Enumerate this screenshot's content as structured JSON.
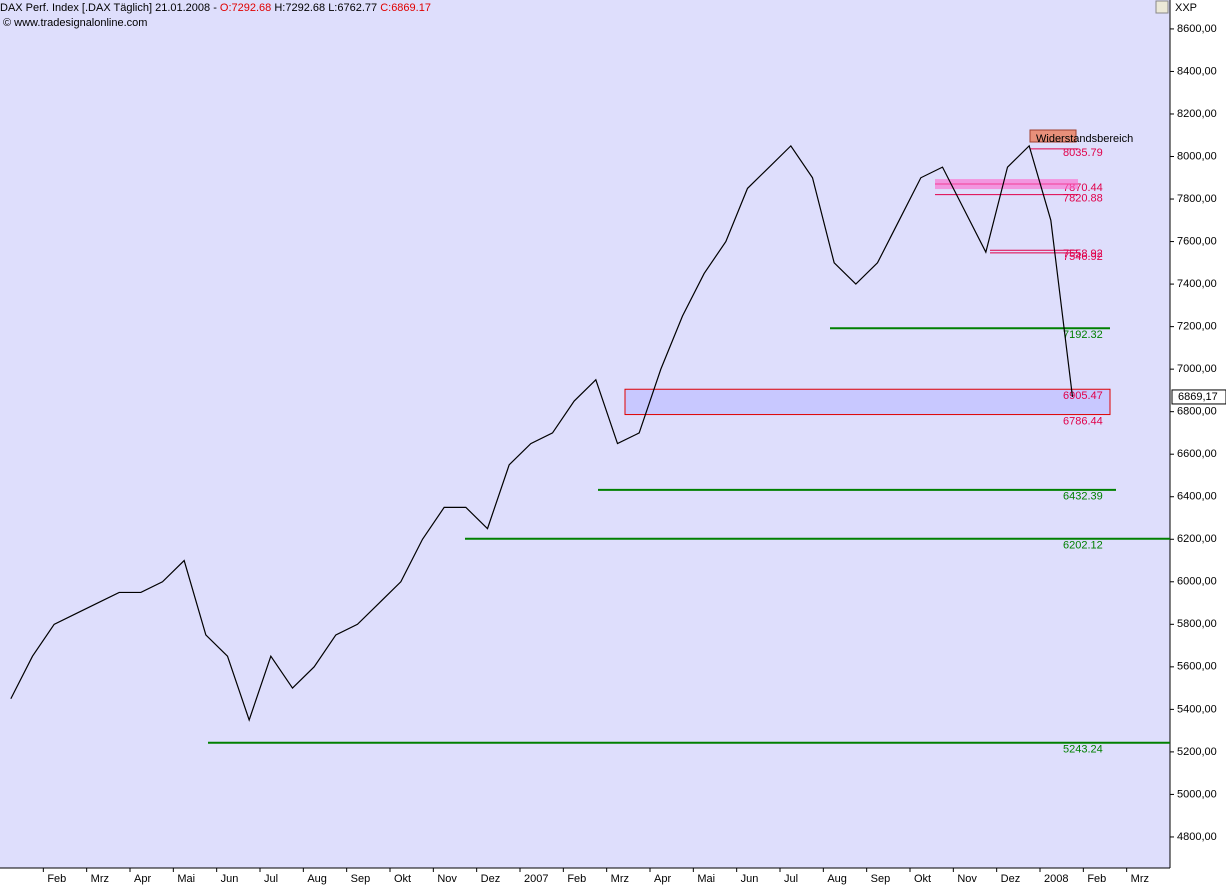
{
  "chart_data": {
    "type": "line",
    "header": {
      "name": "DAX Perf. Index [.DAX  Täglich] 21.01.2008 -",
      "open": "O:7292.68",
      "high": "H:7292.68",
      "low": "L:6762.77",
      "close": "C:6869.17"
    },
    "source": "© www.tradesignalonline.com",
    "symbol": "XXP",
    "color": "#000000",
    "categories": [
      null,
      null,
      "Feb",
      null,
      "Mrz",
      null,
      "Apr",
      null,
      "Mai",
      null,
      "Jun",
      null,
      "Jul",
      null,
      "Aug",
      null,
      "Sep",
      null,
      "Okt",
      null,
      "Nov",
      null,
      "Dez",
      null,
      "2007",
      null,
      "Feb",
      null,
      "Mrz",
      null,
      "Apr",
      null,
      "Mai",
      null,
      "Jun",
      null,
      "Jul",
      null,
      "Aug",
      null,
      "Sep",
      null,
      "Okt",
      null,
      "Nov",
      null,
      "Dez",
      null,
      "2008",
      null,
      "Feb",
      null,
      "Mrz",
      null
    ],
    "values": [
      5450,
      5650,
      5800,
      5850,
      5900,
      5950,
      5950,
      6000,
      6100,
      5750,
      5650,
      5350,
      5650,
      5500,
      5600,
      5750,
      5800,
      5900,
      6000,
      6200,
      6350,
      6350,
      6250,
      6550,
      6650,
      6700,
      6850,
      6950,
      6650,
      6700,
      7000,
      7250,
      7450,
      7600,
      7850,
      7950,
      8050,
      7900,
      7500,
      7400,
      7500,
      7700,
      7900,
      7950,
      7750,
      7550,
      7950,
      8050,
      7700,
      6869.17,
      null,
      null,
      null,
      null
    ],
    "ylim": [
      4654,
      8736
    ],
    "yticks": [
      {
        "value": 4800,
        "label": "4800,00"
      },
      {
        "value": 5000,
        "label": "5000,00"
      },
      {
        "value": 5200,
        "label": "5200,00"
      },
      {
        "value": 5400,
        "label": "5400,00"
      },
      {
        "value": 5600,
        "label": "5600,00"
      },
      {
        "value": 5800,
        "label": "5800,00"
      },
      {
        "value": 6000,
        "label": "6000,00"
      },
      {
        "value": 6200,
        "label": "6200,00"
      },
      {
        "value": 6400,
        "label": "6400,00"
      },
      {
        "value": 6600,
        "label": "6600,00"
      },
      {
        "value": 6800,
        "label": "6800,00"
      },
      {
        "value": 7000,
        "label": "7000,00"
      },
      {
        "value": 7200,
        "label": "7200,00"
      },
      {
        "value": 7400,
        "label": "7400,00"
      },
      {
        "value": 7600,
        "label": "7600,00"
      },
      {
        "value": 7800,
        "label": "7800,00"
      },
      {
        "value": 8000,
        "label": "8000,00"
      },
      {
        "value": 8200,
        "label": "8200,00"
      },
      {
        "value": 8400,
        "label": "8400,00"
      },
      {
        "value": 8600,
        "label": "8600,00"
      }
    ],
    "last": {
      "value": 6869.17,
      "label": "6869,17"
    },
    "support_levels": [
      7192.32,
      6432.39,
      6202.12,
      5243.24
    ],
    "support_color": "#008000",
    "zone": [
      6905.47,
      6786.44
    ],
    "zone_color": "#c8c8ff",
    "resistance_levels": [
      8035.79,
      7870.44,
      7820.88,
      7558.92,
      7546.92
    ],
    "resistance_color": "#e0004a",
    "annotation": "Widerstandsbereich"
  }
}
